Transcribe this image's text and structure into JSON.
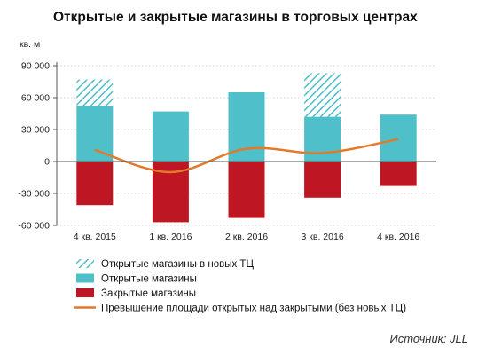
{
  "chart_data": {
    "type": "bar",
    "title": "Открытые  и закрытые  магазины в торговых центрах",
    "unit_label": "кв. м",
    "source": "Источник: JLL",
    "categories": [
      "4 кв. 2015",
      "1 кв. 2016",
      "2 кв. 2016",
      "3 кв. 2016",
      "4 кв. 2016"
    ],
    "ylim": [
      -60000,
      90000
    ],
    "yticks": [
      90000,
      60000,
      30000,
      0,
      -30000,
      -60000
    ],
    "ytick_labels": [
      "90 000",
      "60 000",
      "30 000",
      "0",
      "-30 000",
      "-60 000"
    ],
    "grid": true,
    "legend_position": "bottom",
    "series": [
      {
        "name": "Открытые магазины в новых ТЦ",
        "kind": "stacked-bar-hatched",
        "color": "#4fbfca",
        "values": [
          25000,
          0,
          0,
          41000,
          0
        ]
      },
      {
        "name": "Открытые магазины",
        "kind": "bar",
        "color": "#4fbfca",
        "values": [
          52000,
          47000,
          65000,
          42000,
          44000
        ]
      },
      {
        "name": "Закрытые магазины",
        "kind": "bar",
        "color": "#be1622",
        "values": [
          -41000,
          -57000,
          -53000,
          -34000,
          -23000
        ]
      },
      {
        "name": "Превышение площади открытых над закрытыми (без новых ТЦ)",
        "kind": "line",
        "color": "#e27a2a",
        "values": [
          11000,
          -10000,
          12000,
          8000,
          21000
        ]
      }
    ]
  }
}
